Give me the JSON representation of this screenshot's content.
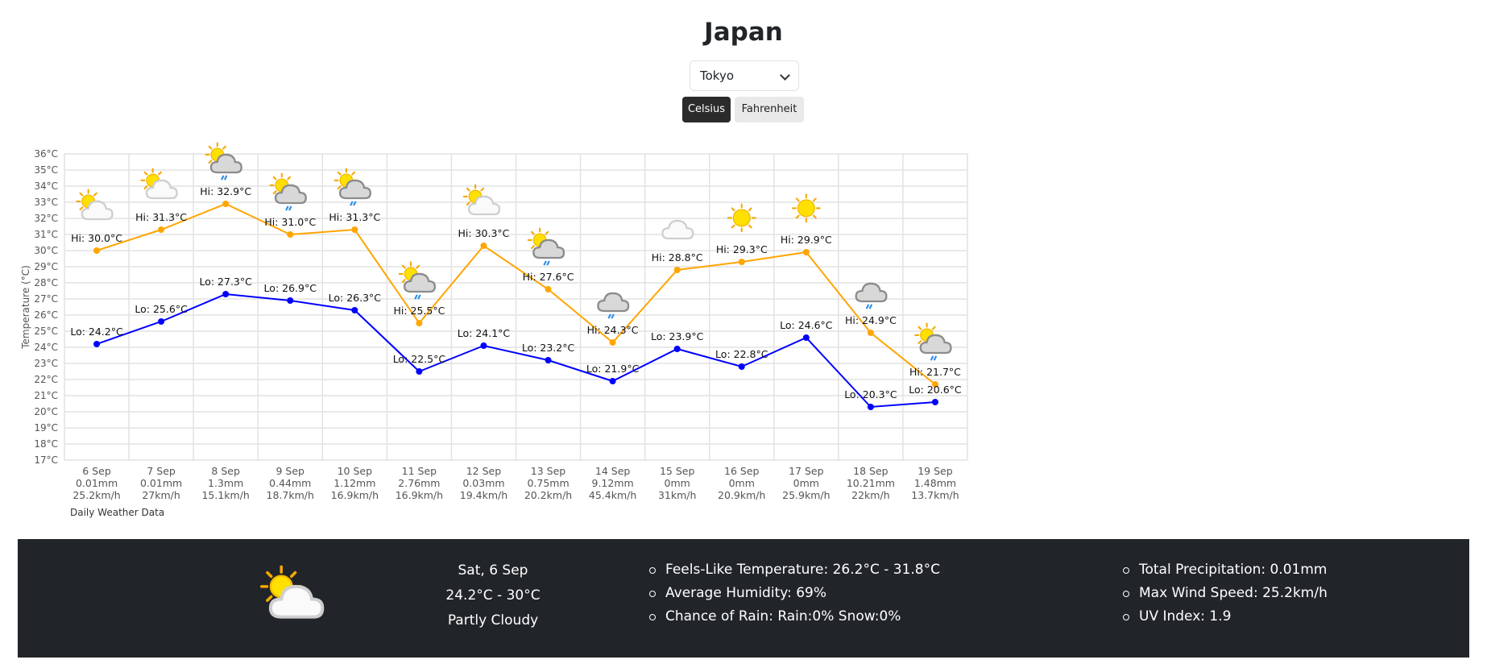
{
  "header": {
    "title": "Japan",
    "city": "Tokyo",
    "units": [
      "Celsius",
      "Fahrenheit"
    ],
    "active_unit": "Celsius"
  },
  "chart_data": {
    "type": "line",
    "title": "Daily Weather Data",
    "ylabel": "Temperature (°C)",
    "ylim": [
      17,
      36
    ],
    "y_tick_suffix": "°C",
    "categories": [
      "6 Sep",
      "7 Sep",
      "8 Sep",
      "9 Sep",
      "10 Sep",
      "11 Sep",
      "12 Sep",
      "13 Sep",
      "14 Sep",
      "15 Sep",
      "16 Sep",
      "17 Sep",
      "18 Sep",
      "19 Sep"
    ],
    "precipitation": [
      "0.01mm",
      "0.01mm",
      "1.3mm",
      "0.44mm",
      "1.12mm",
      "2.76mm",
      "0.03mm",
      "0.75mm",
      "9.12mm",
      "0mm",
      "0mm",
      "0mm",
      "10.21mm",
      "1.48mm"
    ],
    "wind": [
      "25.2km/h",
      "27km/h",
      "15.1km/h",
      "18.7km/h",
      "16.9km/h",
      "16.9km/h",
      "19.4km/h",
      "20.2km/h",
      "45.4km/h",
      "31km/h",
      "20.9km/h",
      "25.9km/h",
      "22km/h",
      "13.7km/h"
    ],
    "icons": [
      "partly-cloudy",
      "partly-cloudy",
      "sun-cloud-rain",
      "sun-cloud-rain",
      "sun-cloud-rain",
      "sun-cloud-rain",
      "partly-cloudy",
      "sun-cloud-rain",
      "cloud-rain",
      "cloudy",
      "sunny",
      "sunny",
      "cloud-rain",
      "sun-cloud-rain"
    ],
    "series": [
      {
        "name": "Hi",
        "color": "#FFA500",
        "values": [
          30.0,
          31.3,
          32.9,
          31.0,
          31.3,
          25.5,
          30.3,
          27.6,
          24.3,
          28.8,
          29.3,
          29.9,
          24.9,
          21.7
        ]
      },
      {
        "name": "Lo",
        "color": "#0000FF",
        "values": [
          24.2,
          25.6,
          27.3,
          26.9,
          26.3,
          22.5,
          24.1,
          23.2,
          21.9,
          23.9,
          22.8,
          24.6,
          20.3,
          20.6
        ]
      }
    ],
    "grid": true
  },
  "details": {
    "icon": "partly-cloudy",
    "date": "Sat, 6 Sep",
    "range": "24.2°C - 30°C",
    "condition": "Partly Cloudy",
    "left": [
      "Feels-Like Temperature: 26.2°C - 31.8°C",
      "Average Humidity: 69%",
      "Chance of Rain: Rain:0% Snow:0%"
    ],
    "right": [
      "Total Precipitation: 0.01mm",
      "Max Wind Speed: 25.2km/h",
      "UV Index: 1.9"
    ]
  }
}
